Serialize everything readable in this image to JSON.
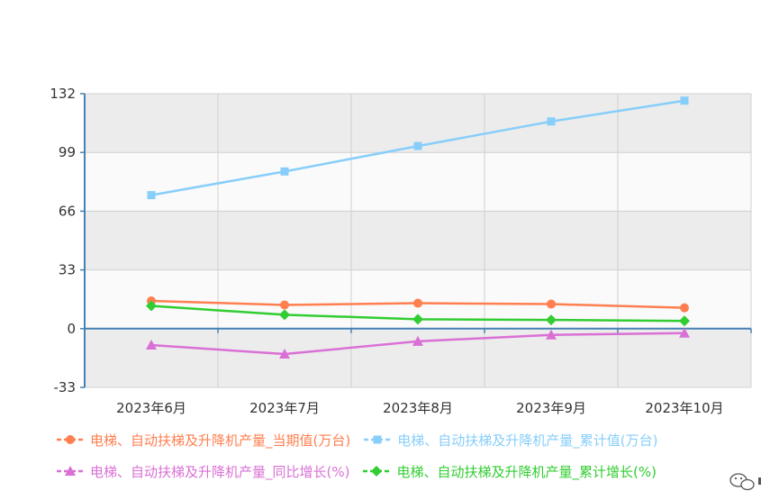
{
  "chart_data": {
    "type": "line",
    "categories": [
      "2023年6月",
      "2023年7月",
      "2023年8月",
      "2023年9月",
      "2023年10月"
    ],
    "ylim": [
      -33,
      132
    ],
    "yticks": [
      "132",
      "99",
      "66",
      "33",
      "0",
      "-33"
    ],
    "ytick_values": [
      132,
      99,
      66,
      33,
      0,
      -33
    ],
    "grid": "on",
    "legend_position": "bottom",
    "series": [
      {
        "name": "电梯、自动扶梯及升降机产量_当期值(万台)",
        "values": [
          15.6,
          13.3,
          14.3,
          13.8,
          11.7
        ],
        "color": "#ff7f50",
        "marker": "circle"
      },
      {
        "name": "电梯、自动扶梯及升降机产量_累计值(万台)",
        "values": [
          75.0,
          88.3,
          102.6,
          116.4,
          128.1
        ],
        "color": "#87cefa",
        "marker": "square"
      },
      {
        "name": "电梯、自动扶梯及升降机产量_同比增长(%)",
        "values": [
          -9.2,
          -14.3,
          -7.1,
          -3.5,
          -2.5
        ],
        "color": "#da70d6",
        "marker": "triangle"
      },
      {
        "name": "电梯、自动扶梯及升降机产量_累计增长(%)",
        "values": [
          12.8,
          7.8,
          5.3,
          4.9,
          4.3
        ],
        "color": "#32cd32",
        "marker": "diamond"
      }
    ]
  },
  "legend_rows": [
    [
      0,
      1
    ],
    [
      2,
      3
    ]
  ],
  "watermark_icon": "wechat-icon"
}
